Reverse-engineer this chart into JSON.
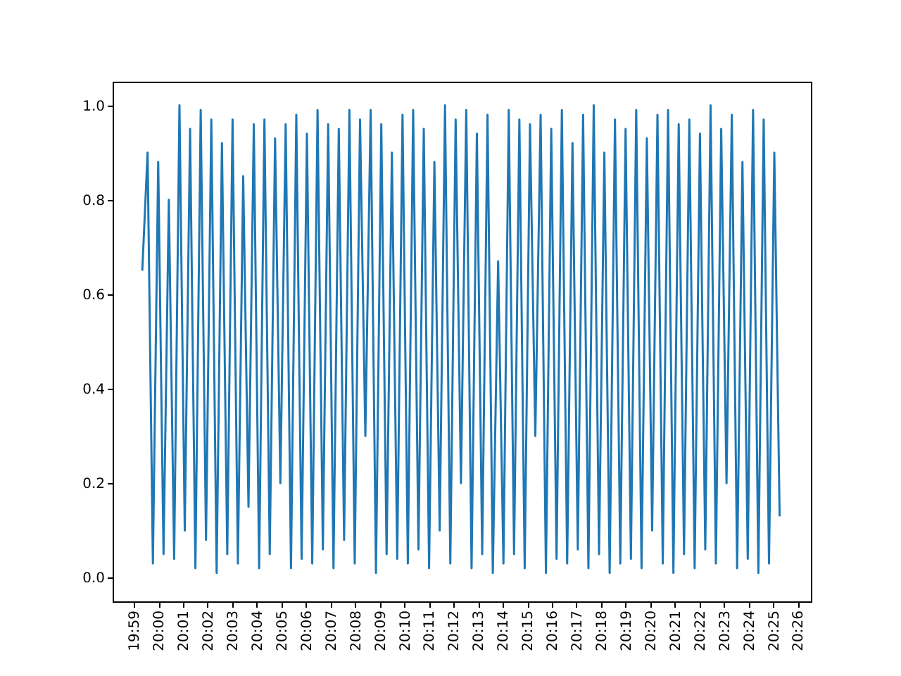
{
  "chart_data": {
    "type": "line",
    "x": [
      19.989,
      19.9926,
      19.9962,
      19.9998,
      20.0034,
      20.007,
      20.0106,
      20.0142,
      20.0178,
      20.0214,
      20.025,
      20.0286,
      20.0322,
      20.0358,
      20.0394,
      20.043,
      20.0466,
      20.0502,
      20.0538,
      20.0574,
      20.061,
      20.0646,
      20.0682,
      20.0718,
      20.0754,
      20.079,
      20.0826,
      20.0862,
      20.0898,
      20.0934,
      20.097,
      20.1006,
      20.1042,
      20.1078,
      20.1114,
      20.115,
      20.1186,
      20.1222,
      20.1258,
      20.1294,
      20.133,
      20.1366,
      20.1402,
      20.1438,
      20.1474,
      20.151,
      20.1546,
      20.1582,
      20.1618,
      20.1654,
      20.169,
      20.1726,
      20.1762,
      20.1798,
      20.1834,
      20.187,
      20.1906,
      20.1942,
      20.1978,
      20.2014,
      20.205,
      20.2086,
      20.2122,
      20.2158,
      20.2194,
      20.223,
      20.2266,
      20.2302,
      20.2338,
      20.2374,
      20.241,
      20.2446,
      20.2482,
      20.2518,
      20.2554,
      20.259,
      20.2626,
      20.2662,
      20.2698,
      20.2734,
      20.277,
      20.2806,
      20.2842,
      20.2878,
      20.2914,
      20.295,
      20.2986,
      20.3022,
      20.3058,
      20.3094,
      20.313,
      20.3166,
      20.3202,
      20.3238,
      20.3274,
      20.331,
      20.3346,
      20.3382,
      20.3418,
      20.3454,
      20.349,
      20.3526,
      20.3562,
      20.3598,
      20.3634,
      20.367,
      20.3706,
      20.3742,
      20.3778,
      20.3814,
      20.385,
      20.3886,
      20.3922,
      20.3958,
      20.3994,
      20.403,
      20.4066,
      20.4102,
      20.4138,
      20.4174,
      20.421
    ],
    "series": [
      {
        "color": "#1f77b4",
        "values": [
          0.65,
          0.9,
          0.03,
          0.88,
          0.05,
          0.8,
          0.04,
          1.0,
          0.1,
          0.95,
          0.02,
          0.99,
          0.08,
          0.97,
          0.01,
          0.92,
          0.05,
          0.97,
          0.03,
          0.85,
          0.15,
          0.96,
          0.02,
          0.97,
          0.05,
          0.93,
          0.2,
          0.96,
          0.02,
          0.98,
          0.04,
          0.94,
          0.03,
          0.99,
          0.06,
          0.96,
          0.02,
          0.95,
          0.08,
          0.99,
          0.03,
          0.97,
          0.3,
          0.99,
          0.01,
          0.96,
          0.05,
          0.9,
          0.04,
          0.98,
          0.03,
          0.99,
          0.06,
          0.95,
          0.02,
          0.88,
          0.1,
          1.0,
          0.03,
          0.97,
          0.2,
          0.99,
          0.02,
          0.94,
          0.05,
          0.98,
          0.01,
          0.67,
          0.03,
          0.99,
          0.05,
          0.97,
          0.02,
          0.96,
          0.3,
          0.98,
          0.01,
          0.95,
          0.04,
          0.99,
          0.03,
          0.92,
          0.06,
          0.98,
          0.02,
          1.0,
          0.05,
          0.9,
          0.01,
          0.97,
          0.03,
          0.95,
          0.04,
          0.99,
          0.02,
          0.93,
          0.1,
          0.98,
          0.03,
          0.99,
          0.01,
          0.96,
          0.05,
          0.97,
          0.02,
          0.94,
          0.06,
          1.0,
          0.03,
          0.95,
          0.2,
          0.98,
          0.02,
          0.88,
          0.04,
          0.99,
          0.01,
          0.97,
          0.03,
          0.9,
          0.13
        ]
      }
    ],
    "xlim": [
      19.9689,
      20.4422
    ],
    "xticks": [
      {
        "value": 19.9833,
        "label": "19:59"
      },
      {
        "value": 20,
        "label": "20:00"
      },
      {
        "value": 20.0167,
        "label": "20:01"
      },
      {
        "value": 20.0333,
        "label": "20:02"
      },
      {
        "value": 20.05,
        "label": "20:03"
      },
      {
        "value": 20.0667,
        "label": "20:04"
      },
      {
        "value": 20.0833,
        "label": "20:05"
      },
      {
        "value": 20.1,
        "label": "20:06"
      },
      {
        "value": 20.1167,
        "label": "20:07"
      },
      {
        "value": 20.1333,
        "label": "20:08"
      },
      {
        "value": 20.15,
        "label": "20:09"
      },
      {
        "value": 20.1667,
        "label": "20:10"
      },
      {
        "value": 20.1833,
        "label": "20:11"
      },
      {
        "value": 20.2,
        "label": "20:12"
      },
      {
        "value": 20.2167,
        "label": "20:13"
      },
      {
        "value": 20.2333,
        "label": "20:14"
      },
      {
        "value": 20.25,
        "label": "20:15"
      },
      {
        "value": 20.2667,
        "label": "20:16"
      },
      {
        "value": 20.2833,
        "label": "20:17"
      },
      {
        "value": 20.3,
        "label": "20:18"
      },
      {
        "value": 20.3167,
        "label": "20:19"
      },
      {
        "value": 20.3333,
        "label": "20:20"
      },
      {
        "value": 20.35,
        "label": "20:21"
      },
      {
        "value": 20.3667,
        "label": "20:22"
      },
      {
        "value": 20.3833,
        "label": "20:23"
      },
      {
        "value": 20.4,
        "label": "20:24"
      },
      {
        "value": 20.4167,
        "label": "20:25"
      },
      {
        "value": 20.4333,
        "label": "20:26"
      }
    ],
    "ylim": [
      -0.05,
      1.05
    ],
    "yticks": [
      {
        "value": 0,
        "label": "0.0"
      },
      {
        "value": 0.2,
        "label": "0.2"
      },
      {
        "value": 0.4,
        "label": "0.4"
      },
      {
        "value": 0.6,
        "label": "0.6"
      },
      {
        "value": 0.8,
        "label": "0.8"
      },
      {
        "value": 1,
        "label": "1.0"
      }
    ]
  }
}
